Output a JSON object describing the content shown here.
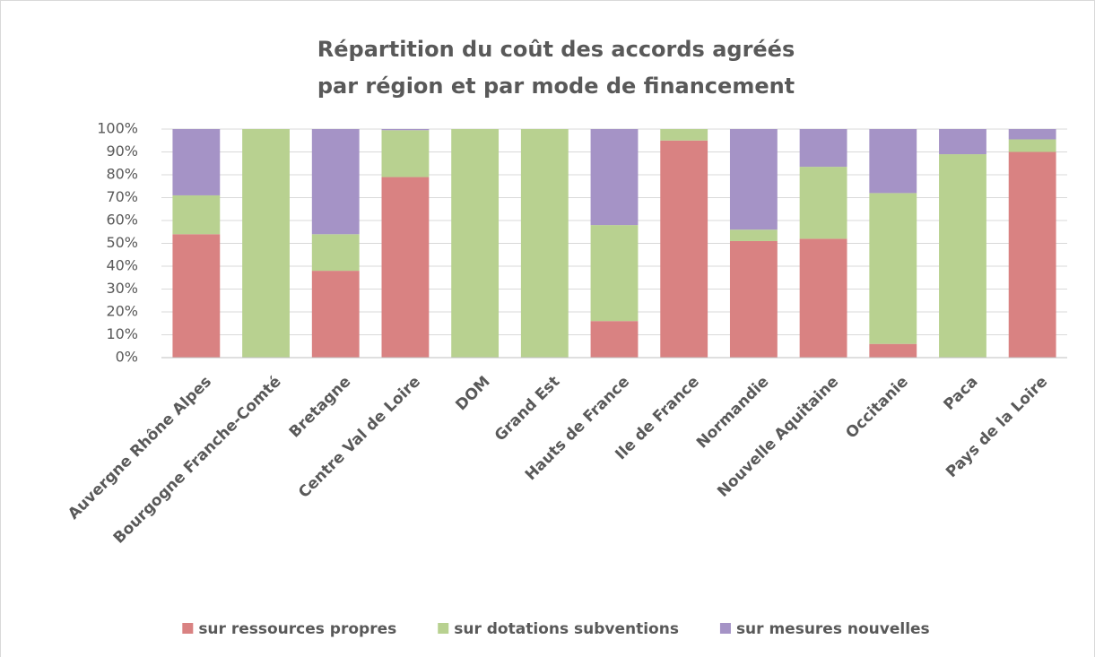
{
  "chart_data": {
    "type": "stacked_bar",
    "title": [
      "Répartition du coût des accords agréés",
      "par région et par mode de financement"
    ],
    "categories": [
      "Auvergne Rhône Alpes",
      "Bourgogne Franche-Comté",
      "Bretagne",
      "Centre Val de Loire",
      "DOM",
      "Grand Est",
      "Hauts de France",
      "Ile de France",
      "Normandie",
      "Nouvelle Aquitaine",
      "Occitanie",
      "Paca",
      "Pays de la Loire"
    ],
    "series": [
      {
        "name": "sur ressources propres",
        "color": "#d98282",
        "values": [
          54,
          0,
          38,
          79,
          0,
          0,
          16,
          95,
          51,
          52,
          6,
          0,
          90
        ]
      },
      {
        "name": "sur dotations subventions",
        "color": "#b8d190",
        "values": [
          17,
          100,
          16,
          20.5,
          100,
          100,
          42,
          5,
          5,
          31.5,
          66,
          89,
          5.5
        ]
      },
      {
        "name": "sur mesures nouvelles",
        "color": "#a593c6",
        "values": [
          29,
          0,
          46,
          0.5,
          0,
          0,
          42,
          0,
          44,
          16.5,
          28,
          11,
          4.5
        ]
      }
    ],
    "ylim": [
      0,
      100
    ],
    "yticks": [
      {
        "value": 0,
        "label": "0%"
      },
      {
        "value": 10,
        "label": "10%"
      },
      {
        "value": 20,
        "label": "20%"
      },
      {
        "value": 30,
        "label": "30%"
      },
      {
        "value": 40,
        "label": "40%"
      },
      {
        "value": 50,
        "label": "50%"
      },
      {
        "value": 60,
        "label": "60%"
      },
      {
        "value": 70,
        "label": "70%"
      },
      {
        "value": 80,
        "label": "80%"
      },
      {
        "value": 90,
        "label": "90%"
      },
      {
        "value": 100,
        "label": "100%"
      }
    ],
    "grid": true,
    "legend": "bottom"
  }
}
